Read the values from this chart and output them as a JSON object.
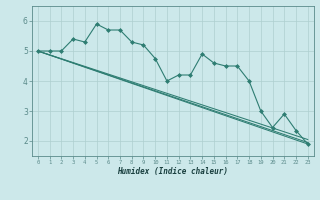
{
  "xlabel": "Humidex (Indice chaleur)",
  "bg_color": "#cce8ea",
  "grid_color": "#aecfcf",
  "line_color": "#2e7d72",
  "marker_color": "#2e7d72",
  "axis_color": "#5a8a8a",
  "xlim": [
    -0.5,
    23.5
  ],
  "ylim": [
    1.5,
    6.5
  ],
  "yticks": [
    2,
    3,
    4,
    5,
    6
  ],
  "xticks": [
    0,
    1,
    2,
    3,
    4,
    5,
    6,
    7,
    8,
    9,
    10,
    11,
    12,
    13,
    14,
    15,
    16,
    17,
    18,
    19,
    20,
    21,
    22,
    23
  ],
  "series": {
    "main": {
      "x": [
        0,
        1,
        2,
        3,
        4,
        5,
        6,
        7,
        8,
        9,
        10,
        11,
        12,
        13,
        14,
        15,
        16,
        17,
        18,
        19,
        20,
        21,
        22,
        23
      ],
      "y": [
        5.0,
        5.0,
        5.0,
        5.4,
        5.3,
        5.9,
        5.7,
        5.7,
        5.3,
        5.2,
        4.75,
        4.0,
        4.2,
        4.2,
        4.9,
        4.6,
        4.5,
        4.5,
        4.0,
        3.0,
        2.45,
        2.9,
        2.35,
        1.9
      ]
    },
    "trend1": {
      "x": [
        0,
        23
      ],
      "y": [
        5.0,
        1.9
      ]
    },
    "trend2": {
      "x": [
        0,
        23
      ],
      "y": [
        5.0,
        2.05
      ]
    },
    "trend3": {
      "x": [
        0,
        23
      ],
      "y": [
        5.0,
        1.95
      ]
    }
  }
}
